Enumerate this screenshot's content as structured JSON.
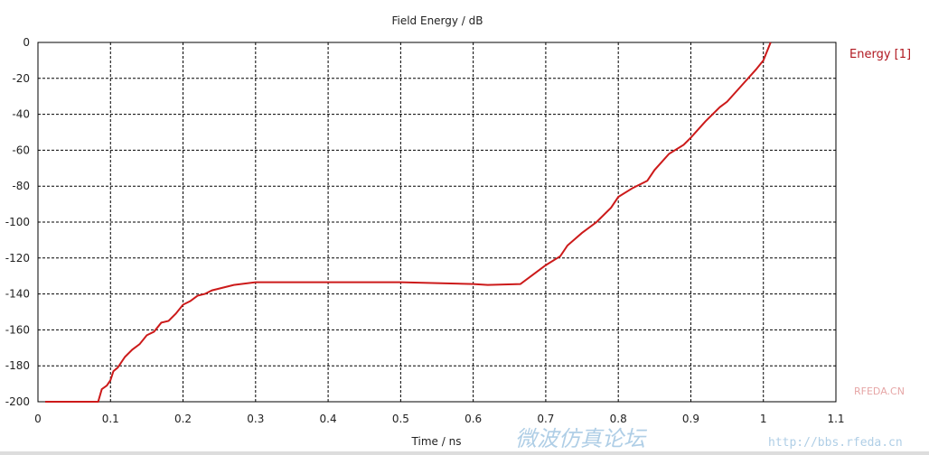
{
  "chart_data": {
    "type": "line",
    "title": "Field Energy / dB",
    "xlabel": "Time / ns",
    "ylabel": "",
    "xlim": [
      0,
      1.1
    ],
    "ylim": [
      -200,
      0
    ],
    "xticks": [
      "0",
      "0.1",
      "0.2",
      "0.3",
      "0.4",
      "0.5",
      "0.6",
      "0.7",
      "0.8",
      "0.9",
      "1",
      "1.1"
    ],
    "yticks": [
      "0",
      "-20",
      "-40",
      "-60",
      "-80",
      "-100",
      "-120",
      "-140",
      "-160",
      "-180",
      "-200"
    ],
    "grid": true,
    "legend_position": "right",
    "series": [
      {
        "name": "Energy [1]",
        "color": "#cc1a1a",
        "x": [
          0.01,
          0.083,
          0.088,
          0.095,
          0.1,
          0.104,
          0.11,
          0.12,
          0.13,
          0.14,
          0.15,
          0.16,
          0.17,
          0.18,
          0.19,
          0.2,
          0.21,
          0.22,
          0.23,
          0.24,
          0.25,
          0.27,
          0.3,
          0.35,
          0.4,
          0.45,
          0.5,
          0.55,
          0.6,
          0.62,
          0.665,
          0.68,
          0.7,
          0.72,
          0.73,
          0.75,
          0.77,
          0.79,
          0.8,
          0.82,
          0.84,
          0.85,
          0.87,
          0.89,
          0.9,
          0.92,
          0.94,
          0.95,
          0.97,
          0.99,
          1.0,
          1.01
        ],
        "y": [
          -200,
          -200,
          -193,
          -191,
          -188,
          -183,
          -181,
          -175,
          -171,
          -168,
          -163,
          -161,
          -156,
          -155,
          -151,
          -146,
          -144,
          -141,
          -140,
          -138,
          -137,
          -135,
          -133.5,
          -133.5,
          -133.5,
          -133.5,
          -133.5,
          -134,
          -134.5,
          -135,
          -134.5,
          -130,
          -124,
          -119,
          -113,
          -106,
          -100,
          -92,
          -86,
          -81,
          -77,
          -71,
          -62,
          -57,
          -53,
          -44,
          -36,
          -33,
          -24,
          -15,
          -10,
          0
        ]
      }
    ]
  },
  "watermark": {
    "cn": "微波仿真论坛",
    "url": "http://bbs.rfeda.cn",
    "brand": "RFEDA.CN"
  }
}
